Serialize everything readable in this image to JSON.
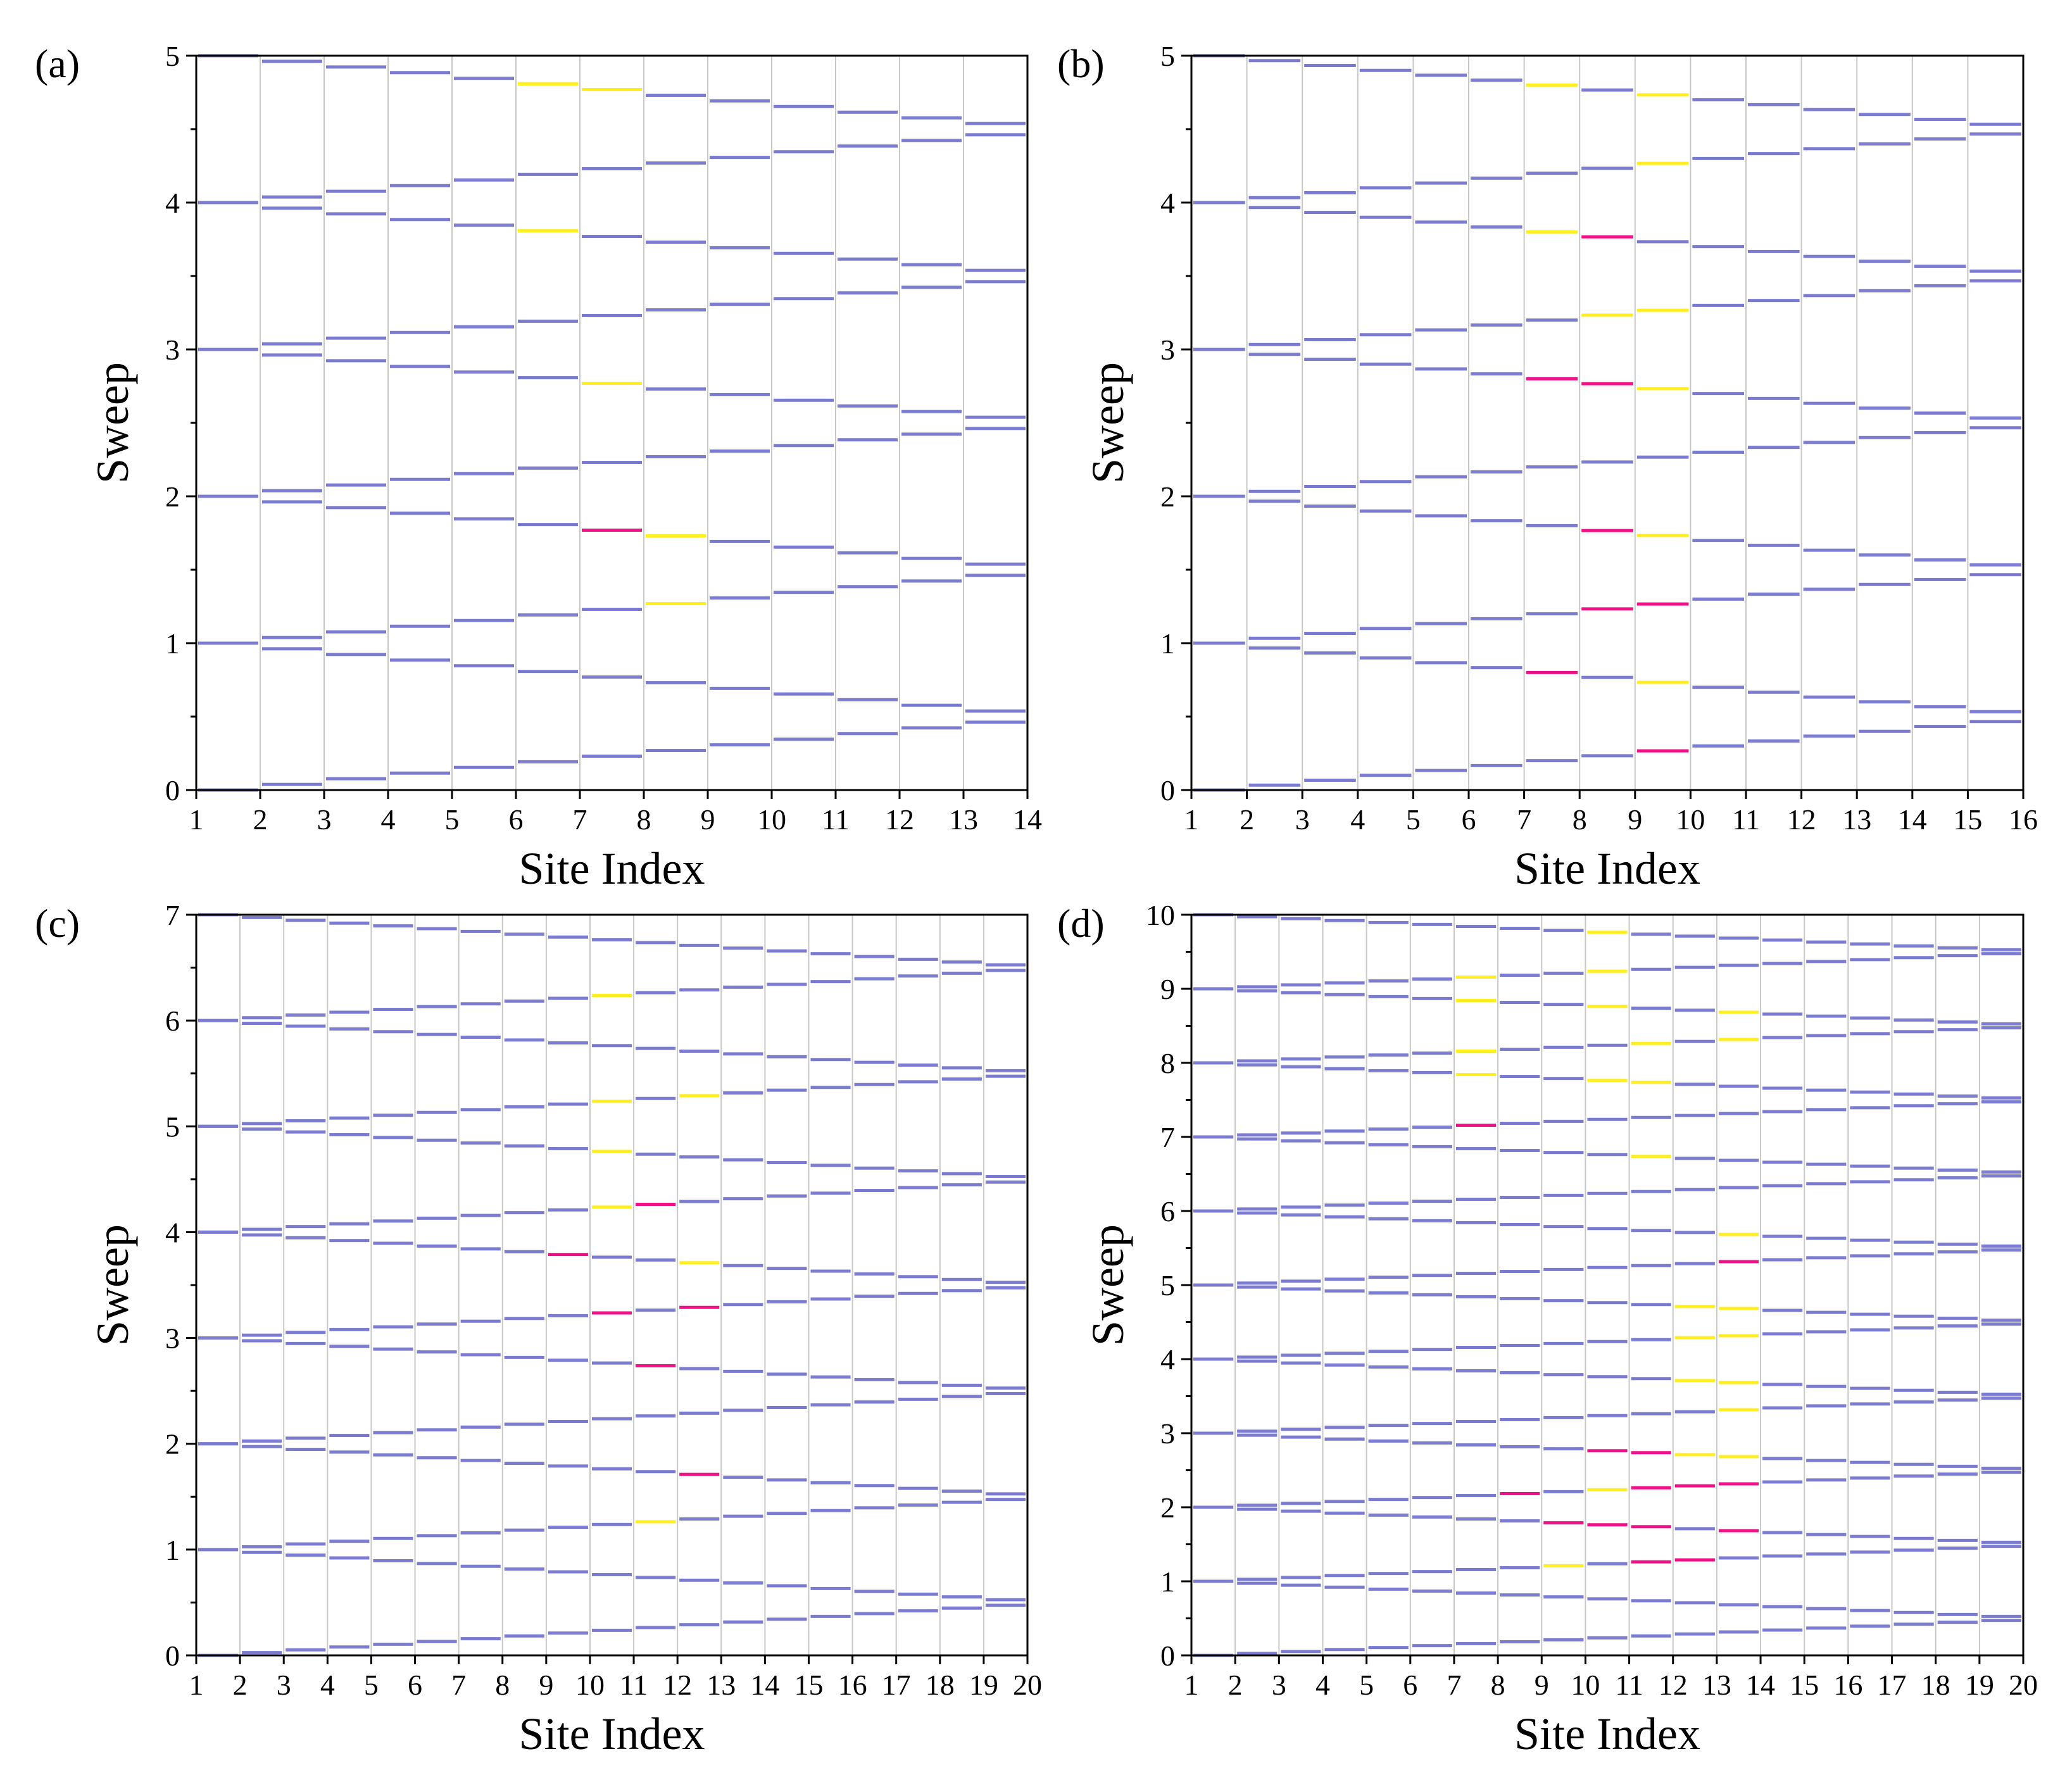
{
  "colors": {
    "normal": "#7b7bd0",
    "yellow": "#ffee22",
    "magenta": "#ee1188",
    "grid": "#c8c8c8",
    "axis": "#000000"
  },
  "chart_data": [
    {
      "type": "segment-sweep",
      "panel_label": "(a)",
      "xlabel": "Site Index",
      "ylabel": "Sweep",
      "sites": 14,
      "ylim": [
        0,
        5
      ],
      "yticks": [
        "0",
        "1",
        "2",
        "3",
        "4",
        "5"
      ],
      "xticks": [
        "1",
        "2",
        "3",
        "4",
        "5",
        "6",
        "7",
        "8",
        "9",
        "10",
        "11",
        "12",
        "13",
        "14"
      ],
      "highlights": [
        {
          "site": 6,
          "sweep": 4,
          "pos": "upper",
          "color": "yellow"
        },
        {
          "site": 7,
          "sweep": 4,
          "pos": "upper",
          "color": "yellow"
        },
        {
          "site": 6,
          "sweep": 3,
          "pos": "upper",
          "color": "yellow"
        },
        {
          "site": 7,
          "sweep": 2,
          "pos": "upper",
          "color": "yellow"
        },
        {
          "site": 7,
          "sweep": 1,
          "pos": "upper",
          "color": "magenta"
        },
        {
          "site": 8,
          "sweep": 1,
          "pos": "upper",
          "color": "yellow"
        },
        {
          "site": 8,
          "sweep": 1,
          "pos": "lower",
          "color": "yellow"
        }
      ]
    },
    {
      "type": "segment-sweep",
      "panel_label": "(b)",
      "xlabel": "Site Index",
      "ylabel": "Sweep",
      "sites": 16,
      "ylim": [
        0,
        5
      ],
      "yticks": [
        "0",
        "1",
        "2",
        "3",
        "4",
        "5"
      ],
      "xticks": [
        "1",
        "2",
        "3",
        "4",
        "5",
        "6",
        "7",
        "8",
        "9",
        "10",
        "11",
        "12",
        "13",
        "14",
        "15",
        "16"
      ],
      "highlights": [
        {
          "site": 7,
          "sweep": 4,
          "pos": "upper",
          "color": "yellow"
        },
        {
          "site": 9,
          "sweep": 4,
          "pos": "upper",
          "color": "yellow"
        },
        {
          "site": 9,
          "sweep": 4,
          "pos": "lower",
          "color": "yellow"
        },
        {
          "site": 7,
          "sweep": 3,
          "pos": "upper",
          "color": "yellow"
        },
        {
          "site": 8,
          "sweep": 3,
          "pos": "upper",
          "color": "magenta"
        },
        {
          "site": 8,
          "sweep": 3,
          "pos": "lower",
          "color": "yellow"
        },
        {
          "site": 9,
          "sweep": 3,
          "pos": "lower",
          "color": "yellow"
        },
        {
          "site": 7,
          "sweep": 2,
          "pos": "upper",
          "color": "magenta"
        },
        {
          "site": 8,
          "sweep": 2,
          "pos": "upper",
          "color": "magenta"
        },
        {
          "site": 9,
          "sweep": 2,
          "pos": "upper",
          "color": "yellow"
        },
        {
          "site": 8,
          "sweep": 1,
          "pos": "upper",
          "color": "magenta"
        },
        {
          "site": 8,
          "sweep": 1,
          "pos": "lower",
          "color": "magenta"
        },
        {
          "site": 9,
          "sweep": 1,
          "pos": "upper",
          "color": "yellow"
        },
        {
          "site": 9,
          "sweep": 1,
          "pos": "lower",
          "color": "magenta"
        },
        {
          "site": 7,
          "sweep": 0,
          "pos": "upper",
          "color": "magenta"
        },
        {
          "site": 9,
          "sweep": 0,
          "pos": "upper",
          "color": "yellow"
        },
        {
          "site": 9,
          "sweep": 0,
          "pos": "lower",
          "color": "magenta"
        }
      ]
    },
    {
      "type": "segment-sweep",
      "panel_label": "(c)",
      "xlabel": "Site Index",
      "ylabel": "Sweep",
      "sites": 20,
      "ylim": [
        0,
        7
      ],
      "yticks": [
        "0",
        "1",
        "2",
        "3",
        "4",
        "5",
        "6",
        "7"
      ],
      "xticks": [
        "1",
        "2",
        "3",
        "4",
        "5",
        "6",
        "7",
        "8",
        "9",
        "10",
        "11",
        "12",
        "13",
        "14",
        "15",
        "16",
        "17",
        "18",
        "19",
        "20"
      ],
      "highlights": [
        {
          "site": 10,
          "sweep": 6,
          "pos": "lower",
          "color": "yellow"
        },
        {
          "site": 10,
          "sweep": 5,
          "pos": "lower",
          "color": "yellow"
        },
        {
          "site": 12,
          "sweep": 5,
          "pos": "lower",
          "color": "yellow"
        },
        {
          "site": 10,
          "sweep": 4,
          "pos": "upper",
          "color": "yellow"
        },
        {
          "site": 10,
          "sweep": 4,
          "pos": "lower",
          "color": "yellow"
        },
        {
          "site": 11,
          "sweep": 4,
          "pos": "lower",
          "color": "magenta"
        },
        {
          "site": 9,
          "sweep": 3,
          "pos": "upper",
          "color": "magenta"
        },
        {
          "site": 12,
          "sweep": 3,
          "pos": "upper",
          "color": "yellow"
        },
        {
          "site": 10,
          "sweep": 3,
          "pos": "lower",
          "color": "magenta"
        },
        {
          "site": 12,
          "sweep": 3,
          "pos": "lower",
          "color": "magenta"
        },
        {
          "site": 11,
          "sweep": 2,
          "pos": "upper",
          "color": "magenta"
        },
        {
          "site": 12,
          "sweep": 1,
          "pos": "upper",
          "color": "magenta"
        },
        {
          "site": 11,
          "sweep": 1,
          "pos": "lower",
          "color": "yellow"
        }
      ]
    },
    {
      "type": "segment-sweep",
      "panel_label": "(d)",
      "xlabel": "Site Index",
      "ylabel": "Sweep",
      "sites": 20,
      "ylim": [
        0,
        10
      ],
      "yticks": [
        "0",
        "1",
        "2",
        "3",
        "4",
        "5",
        "6",
        "7",
        "8",
        "9",
        "10"
      ],
      "xticks": [
        "1",
        "2",
        "3",
        "4",
        "5",
        "6",
        "7",
        "8",
        "9",
        "10",
        "11",
        "12",
        "13",
        "14",
        "15",
        "16",
        "17",
        "18",
        "19",
        "20"
      ],
      "highlights": [
        {
          "site": 10,
          "sweep": 9,
          "pos": "upper",
          "color": "yellow"
        },
        {
          "site": 7,
          "sweep": 9,
          "pos": "lower",
          "color": "yellow"
        },
        {
          "site": 10,
          "sweep": 9,
          "pos": "lower",
          "color": "yellow"
        },
        {
          "site": 7,
          "sweep": 8,
          "pos": "upper",
          "color": "yellow"
        },
        {
          "site": 10,
          "sweep": 8,
          "pos": "upper",
          "color": "yellow"
        },
        {
          "site": 13,
          "sweep": 8,
          "pos": "upper",
          "color": "yellow"
        },
        {
          "site": 7,
          "sweep": 8,
          "pos": "lower",
          "color": "yellow"
        },
        {
          "site": 11,
          "sweep": 8,
          "pos": "lower",
          "color": "yellow"
        },
        {
          "site": 13,
          "sweep": 8,
          "pos": "lower",
          "color": "yellow"
        },
        {
          "site": 7,
          "sweep": 7,
          "pos": "upper",
          "color": "yellow"
        },
        {
          "site": 10,
          "sweep": 7,
          "pos": "upper",
          "color": "yellow"
        },
        {
          "site": 11,
          "sweep": 7,
          "pos": "upper",
          "color": "yellow"
        },
        {
          "site": 7,
          "sweep": 7,
          "pos": "lower",
          "color": "magenta"
        },
        {
          "site": 11,
          "sweep": 6,
          "pos": "upper",
          "color": "yellow"
        },
        {
          "site": 13,
          "sweep": 5,
          "pos": "upper",
          "color": "yellow"
        },
        {
          "site": 13,
          "sweep": 5,
          "pos": "lower",
          "color": "magenta"
        },
        {
          "site": 12,
          "sweep": 4,
          "pos": "upper",
          "color": "yellow"
        },
        {
          "site": 13,
          "sweep": 4,
          "pos": "upper",
          "color": "yellow"
        },
        {
          "site": 12,
          "sweep": 4,
          "pos": "lower",
          "color": "yellow"
        },
        {
          "site": 13,
          "sweep": 4,
          "pos": "lower",
          "color": "yellow"
        },
        {
          "site": 12,
          "sweep": 3,
          "pos": "upper",
          "color": "yellow"
        },
        {
          "site": 13,
          "sweep": 3,
          "pos": "upper",
          "color": "yellow"
        },
        {
          "site": 13,
          "sweep": 3,
          "pos": "lower",
          "color": "yellow"
        },
        {
          "site": 10,
          "sweep": 2,
          "pos": "upper",
          "color": "magenta"
        },
        {
          "site": 11,
          "sweep": 2,
          "pos": "upper",
          "color": "magenta"
        },
        {
          "site": 12,
          "sweep": 2,
          "pos": "upper",
          "color": "yellow"
        },
        {
          "site": 13,
          "sweep": 2,
          "pos": "upper",
          "color": "yellow"
        },
        {
          "site": 8,
          "sweep": 2,
          "pos": "lower",
          "color": "magenta"
        },
        {
          "site": 10,
          "sweep": 2,
          "pos": "lower",
          "color": "yellow"
        },
        {
          "site": 11,
          "sweep": 2,
          "pos": "lower",
          "color": "magenta"
        },
        {
          "site": 12,
          "sweep": 2,
          "pos": "lower",
          "color": "magenta"
        },
        {
          "site": 13,
          "sweep": 2,
          "pos": "lower",
          "color": "magenta"
        },
        {
          "site": 9,
          "sweep": 1,
          "pos": "upper",
          "color": "magenta"
        },
        {
          "site": 10,
          "sweep": 1,
          "pos": "upper",
          "color": "magenta"
        },
        {
          "site": 11,
          "sweep": 1,
          "pos": "upper",
          "color": "magenta"
        },
        {
          "site": 13,
          "sweep": 1,
          "pos": "upper",
          "color": "magenta"
        },
        {
          "site": 9,
          "sweep": 1,
          "pos": "lower",
          "color": "yellow"
        },
        {
          "site": 11,
          "sweep": 1,
          "pos": "lower",
          "color": "magenta"
        },
        {
          "site": 12,
          "sweep": 1,
          "pos": "lower",
          "color": "magenta"
        }
      ]
    }
  ]
}
